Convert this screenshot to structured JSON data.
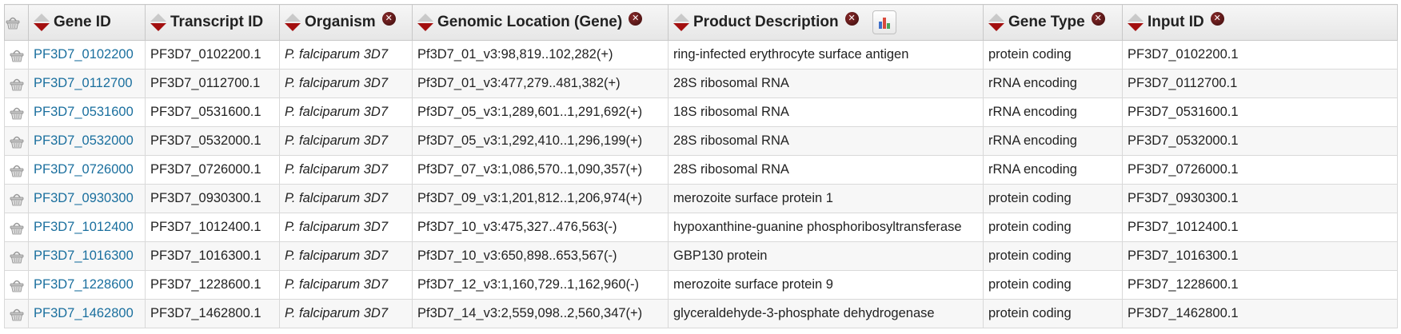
{
  "columns": [
    {
      "key": "basket",
      "label": ""
    },
    {
      "key": "gene_id",
      "label": "Gene ID"
    },
    {
      "key": "transcript_id",
      "label": "Transcript ID"
    },
    {
      "key": "organism",
      "label": "Organism"
    },
    {
      "key": "genomic_location",
      "label": "Genomic Location (Gene)"
    },
    {
      "key": "product_description",
      "label": "Product Description"
    },
    {
      "key": "gene_type",
      "label": "Gene Type"
    },
    {
      "key": "input_id",
      "label": "Input ID"
    }
  ],
  "colors": {
    "link": "#1a6f9e",
    "sort_down_arrow": "#a30f0f",
    "sort_up_arrow": "#c9c9c9",
    "header_bg": "#ececec",
    "row_alt_bg": "#f7f7f7"
  },
  "icons": {
    "basket": "basket-icon",
    "sort": "sort-arrows-icon",
    "remove_column": "close-icon",
    "histogram": "bar-chart-icon"
  },
  "rows": [
    {
      "gene_id": "PF3D7_0102200",
      "transcript_id": "PF3D7_0102200.1",
      "organism": "P. falciparum 3D7",
      "genomic_location": "Pf3D7_01_v3:98,819..102,282(+)",
      "product_description": "ring-infected erythrocyte surface antigen",
      "gene_type": "protein coding",
      "input_id": "PF3D7_0102200.1"
    },
    {
      "gene_id": "PF3D7_0112700",
      "transcript_id": "PF3D7_0112700.1",
      "organism": "P. falciparum 3D7",
      "genomic_location": "Pf3D7_01_v3:477,279..481,382(+)",
      "product_description": "28S ribosomal RNA",
      "gene_type": "rRNA encoding",
      "input_id": "PF3D7_0112700.1"
    },
    {
      "gene_id": "PF3D7_0531600",
      "transcript_id": "PF3D7_0531600.1",
      "organism": "P. falciparum 3D7",
      "genomic_location": "Pf3D7_05_v3:1,289,601..1,291,692(+)",
      "product_description": "18S ribosomal RNA",
      "gene_type": "rRNA encoding",
      "input_id": "PF3D7_0531600.1"
    },
    {
      "gene_id": "PF3D7_0532000",
      "transcript_id": "PF3D7_0532000.1",
      "organism": "P. falciparum 3D7",
      "genomic_location": "Pf3D7_05_v3:1,292,410..1,296,199(+)",
      "product_description": "28S ribosomal RNA",
      "gene_type": "rRNA encoding",
      "input_id": "PF3D7_0532000.1"
    },
    {
      "gene_id": "PF3D7_0726000",
      "transcript_id": "PF3D7_0726000.1",
      "organism": "P. falciparum 3D7",
      "genomic_location": "Pf3D7_07_v3:1,086,570..1,090,357(+)",
      "product_description": "28S ribosomal RNA",
      "gene_type": "rRNA encoding",
      "input_id": "PF3D7_0726000.1"
    },
    {
      "gene_id": "PF3D7_0930300",
      "transcript_id": "PF3D7_0930300.1",
      "organism": "P. falciparum 3D7",
      "genomic_location": "Pf3D7_09_v3:1,201,812..1,206,974(+)",
      "product_description": "merozoite surface protein 1",
      "gene_type": "protein coding",
      "input_id": "PF3D7_0930300.1"
    },
    {
      "gene_id": "PF3D7_1012400",
      "transcript_id": "PF3D7_1012400.1",
      "organism": "P. falciparum 3D7",
      "genomic_location": "Pf3D7_10_v3:475,327..476,563(-)",
      "product_description": "hypoxanthine-guanine phosphoribosyltransferase",
      "gene_type": "protein coding",
      "input_id": "PF3D7_1012400.1"
    },
    {
      "gene_id": "PF3D7_1016300",
      "transcript_id": "PF3D7_1016300.1",
      "organism": "P. falciparum 3D7",
      "genomic_location": "Pf3D7_10_v3:650,898..653,567(-)",
      "product_description": "GBP130 protein",
      "gene_type": "protein coding",
      "input_id": "PF3D7_1016300.1"
    },
    {
      "gene_id": "PF3D7_1228600",
      "transcript_id": "PF3D7_1228600.1",
      "organism": "P. falciparum 3D7",
      "genomic_location": "Pf3D7_12_v3:1,160,729..1,162,960(-)",
      "product_description": "merozoite surface protein 9",
      "gene_type": "protein coding",
      "input_id": "PF3D7_1228600.1"
    },
    {
      "gene_id": "PF3D7_1462800",
      "transcript_id": "PF3D7_1462800.1",
      "organism": "P. falciparum 3D7",
      "genomic_location": "Pf3D7_14_v3:2,559,098..2,560,347(+)",
      "product_description": "glyceraldehyde-3-phosphate dehydrogenase",
      "gene_type": "protein coding",
      "input_id": "PF3D7_1462800.1"
    }
  ]
}
